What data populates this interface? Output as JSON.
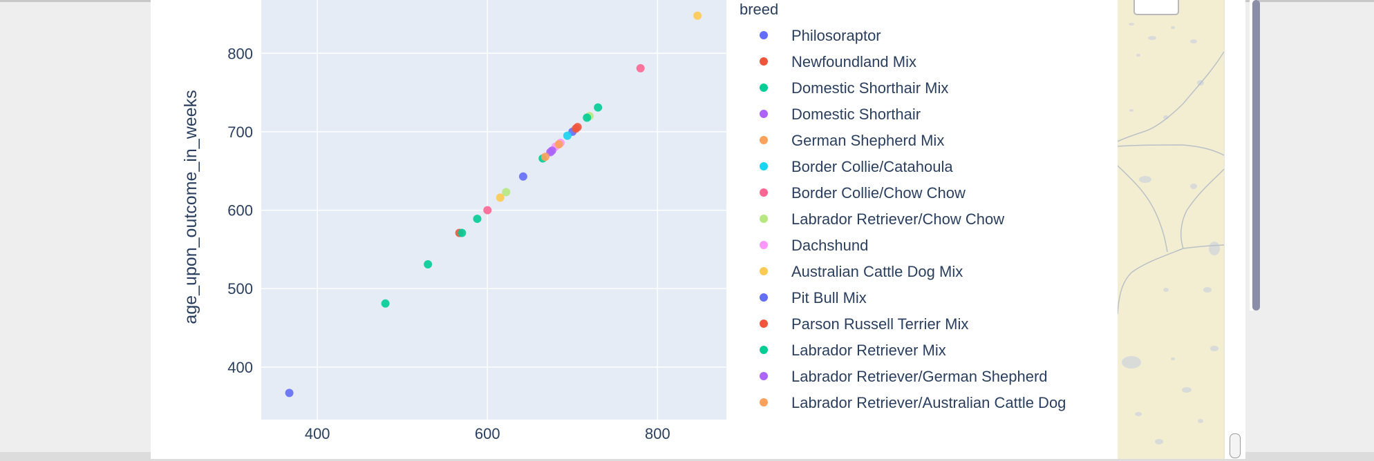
{
  "chart_data": {
    "type": "scatter",
    "ylabel": "age_upon_outcome_in_weeks",
    "xlabel": "",
    "x_ticks": [
      400,
      600,
      800
    ],
    "y_ticks": [
      400,
      500,
      600,
      700,
      800
    ],
    "xlim": [
      334,
      881
    ],
    "ylim": [
      333,
      868
    ],
    "grid": true,
    "legend": {
      "title": "breed",
      "placement": "right"
    },
    "series": [
      {
        "name": "Philosoraptor",
        "color": "#636efa",
        "points": [
          [
            367,
            367
          ],
          [
            700,
            700
          ]
        ]
      },
      {
        "name": "Newfoundland Mix",
        "color": "#EF553B",
        "points": [
          [
            567,
            571
          ],
          [
            706,
            706
          ]
        ]
      },
      {
        "name": "Domestic Shorthair Mix",
        "color": "#00cc96",
        "points": [
          [
            480,
            481
          ],
          [
            530,
            531
          ],
          [
            570,
            571
          ],
          [
            588,
            589
          ],
          [
            665,
            666
          ],
          [
            730,
            731
          ]
        ]
      },
      {
        "name": "Domestic Shorthair",
        "color": "#ab63fa",
        "points": [
          [
            674,
            674
          ]
        ]
      },
      {
        "name": "German Shepherd Mix",
        "color": "#FFA15A",
        "points": [
          [
            668,
            668
          ]
        ]
      },
      {
        "name": "Border Collie/Catahoula",
        "color": "#19d3f3",
        "points": [
          [
            694,
            695
          ]
        ]
      },
      {
        "name": "Border Collie/Chow Chow",
        "color": "#FF6692",
        "points": [
          [
            600,
            600
          ],
          [
            780,
            781
          ]
        ]
      },
      {
        "name": "Labrador Retriever/Chow Chow",
        "color": "#B6E880",
        "points": [
          [
            622,
            623
          ],
          [
            720,
            720
          ]
        ]
      },
      {
        "name": "Dachshund",
        "color": "#FF97FF",
        "points": [
          [
            680,
            681
          ],
          [
            686,
            686
          ]
        ]
      },
      {
        "name": "Australian Cattle Dog Mix",
        "color": "#FECB52",
        "points": [
          [
            615,
            616
          ],
          [
            847,
            848
          ]
        ]
      },
      {
        "name": "Pit Bull Mix",
        "color": "#636efa",
        "points": [
          [
            642,
            643
          ]
        ]
      },
      {
        "name": "Parson Russell Terrier Mix",
        "color": "#EF553B",
        "points": [
          [
            704,
            704
          ]
        ]
      },
      {
        "name": "Labrador Retriever Mix",
        "color": "#00cc96",
        "points": [
          [
            717,
            718
          ]
        ]
      },
      {
        "name": "Labrador Retriever/German Shepherd",
        "color": "#ab63fa",
        "points": [
          [
            676,
            676
          ]
        ]
      },
      {
        "name": "Labrador Retriever/Australian Cattle Dog",
        "color": "#FFA15A",
        "points": [
          [
            684,
            684
          ]
        ]
      }
    ]
  }
}
